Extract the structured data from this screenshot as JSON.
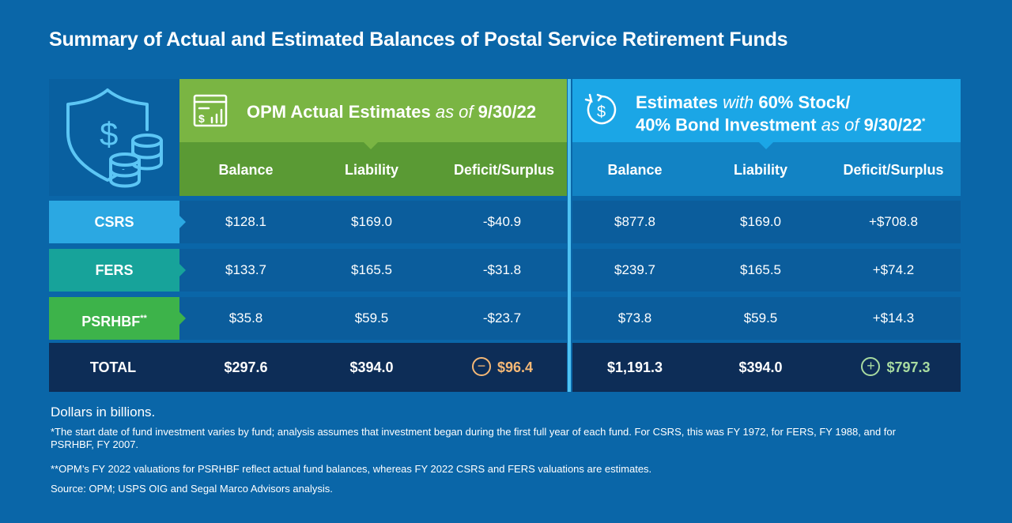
{
  "title": "Summary of Actual and Estimated Balances of Postal Service Retirement Funds",
  "chart_data": {
    "type": "table",
    "groups": [
      {
        "id": "opm",
        "title_main": "OPM Actual Estimates",
        "title_italic": "as of",
        "title_date": "9/30/22",
        "columns": [
          "Balance",
          "Liability",
          "Deficit/Surplus"
        ],
        "header_color": "#7ab543",
        "subheader_color": "#5a9a34"
      },
      {
        "id": "est",
        "title_line1_main": "Estimates",
        "title_line1_italic": "with",
        "title_line1_rest": "60% Stock/",
        "title_line2_main": "40% Bond Investment",
        "title_line2_italic": "as of",
        "title_line2_date": "9/30/22",
        "title_line2_mark": "*",
        "columns": [
          "Balance",
          "Liability",
          "Deficit/Surplus"
        ],
        "header_color": "#1ba6e6",
        "subheader_color": "#1283c4"
      }
    ],
    "rows": [
      {
        "fund": "CSRS",
        "mark": "",
        "color": "#2ba8e2",
        "opm": [
          "$128.1",
          "$169.0",
          "-$40.9"
        ],
        "est": [
          "$877.8",
          "$169.0",
          "+$708.8"
        ]
      },
      {
        "fund": "FERS",
        "mark": "",
        "color": "#17a39a",
        "opm": [
          "$133.7",
          "$165.5",
          "-$31.8"
        ],
        "est": [
          "$239.7",
          "$165.5",
          "+$74.2"
        ]
      },
      {
        "fund": "PSRHBF",
        "mark": "**",
        "color": "#3db34a",
        "opm": [
          "$35.8",
          "$59.5",
          "-$23.7"
        ],
        "est": [
          "$73.8",
          "$59.5",
          "+$14.3"
        ]
      }
    ],
    "total": {
      "label": "TOTAL",
      "opm": [
        "$297.6",
        "$394.0",
        "$96.4"
      ],
      "est": [
        "$1,191.3",
        "$394.0",
        "$797.3"
      ],
      "opm_badge": "−",
      "est_badge": "+",
      "deficit_color": "#f5b876",
      "surplus_color": "#a8dba0"
    }
  },
  "notes": {
    "units": "Dollars in billions.",
    "note1": "*The start date of fund investment varies by fund; analysis assumes that investment began during the first full year of each fund. For CSRS, this was FY 1972, for FERS, FY 1988, and for PSRHBF, FY 2007.",
    "note2": "**OPM’s FY 2022 valuations for PSRHBF reflect actual fund balances, whereas FY 2022 CSRS and FERS valuations are estimates.",
    "source": "Source: OPM; USPS OIG and Segal Marco Advisors analysis."
  },
  "icons": {
    "main": "money-shield-coins-icon",
    "opm": "chart-report-icon",
    "est": "dollar-cycle-icon"
  }
}
